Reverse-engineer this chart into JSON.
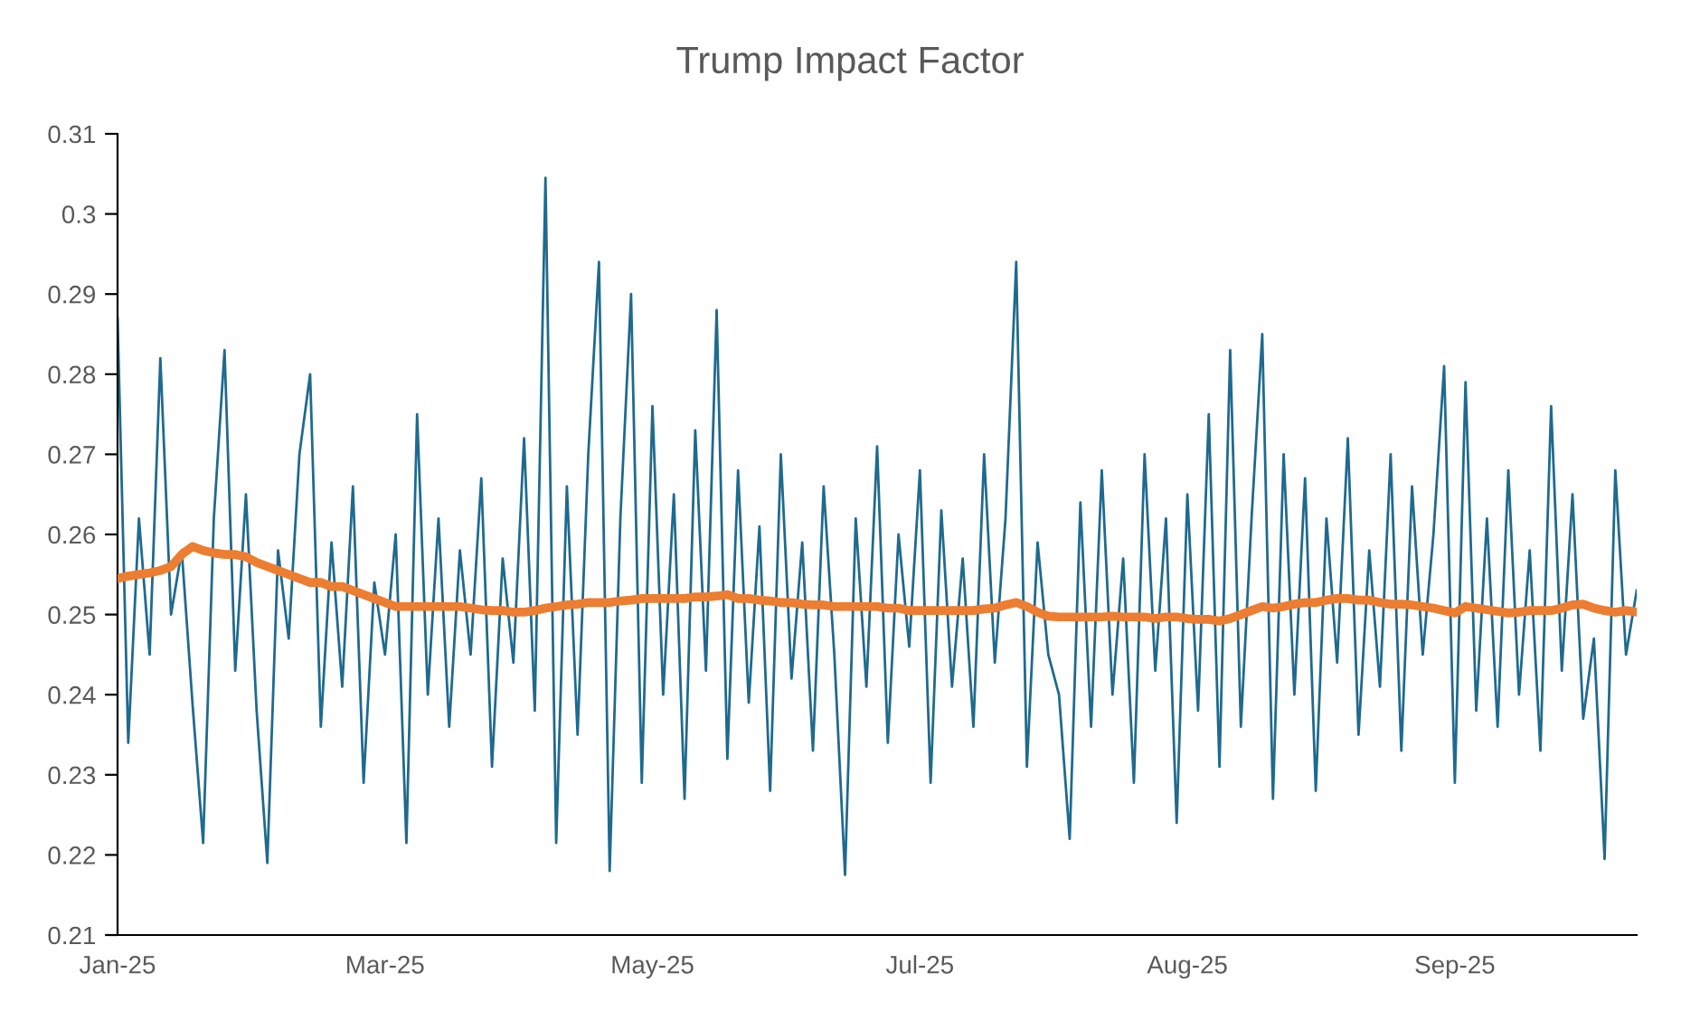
{
  "chart_data": {
    "type": "line",
    "title": "Trump Impact Factor",
    "categories": [
      "Jan-25",
      null,
      null,
      null,
      null,
      null,
      null,
      null,
      null,
      null,
      null,
      null,
      null,
      null,
      null,
      null,
      null,
      null,
      null,
      null,
      null,
      null,
      null,
      null,
      null,
      "Mar-25",
      null,
      null,
      null,
      null,
      null,
      null,
      null,
      null,
      null,
      null,
      null,
      null,
      null,
      null,
      null,
      null,
      null,
      null,
      null,
      null,
      null,
      null,
      null,
      null,
      "May-25",
      null,
      null,
      null,
      null,
      null,
      null,
      null,
      null,
      null,
      null,
      null,
      null,
      null,
      null,
      null,
      null,
      null,
      null,
      null,
      null,
      null,
      null,
      null,
      null,
      "Jul-25",
      null,
      null,
      null,
      null,
      null,
      null,
      null,
      null,
      null,
      null,
      null,
      null,
      null,
      null,
      null,
      null,
      null,
      null,
      null,
      null,
      null,
      null,
      null,
      null,
      "Aug-25",
      null,
      null,
      null,
      null,
      null,
      null,
      null,
      null,
      null,
      null,
      null,
      null,
      null,
      null,
      null,
      null,
      null,
      null,
      null,
      null,
      null,
      null,
      null,
      null,
      "Sep-25",
      null,
      null,
      null,
      null,
      null,
      null,
      null,
      null,
      null,
      null,
      null,
      null,
      null,
      null,
      null,
      null,
      null
    ],
    "ylim": [
      0.21,
      0.31
    ],
    "yticks": [
      0.21,
      0.22,
      0.23,
      0.24,
      0.25,
      0.26,
      0.27,
      0.28,
      0.29,
      0.3,
      0.31
    ],
    "grid": false,
    "marker": "none",
    "line_style": "solid",
    "series": [
      {
        "color": "#1f6a8e",
        "values": [
          0.287,
          0.234,
          0.262,
          0.245,
          0.282,
          0.25,
          0.258,
          0.239,
          0.2215,
          0.262,
          0.283,
          0.243,
          0.265,
          0.238,
          0.219,
          0.258,
          0.247,
          0.27,
          0.28,
          0.236,
          0.259,
          0.241,
          0.266,
          0.229,
          0.254,
          0.245,
          0.26,
          0.2215,
          0.275,
          0.24,
          0.262,
          0.236,
          0.258,
          0.245,
          0.267,
          0.231,
          0.257,
          0.244,
          0.272,
          0.238,
          0.3045,
          0.2215,
          0.266,
          0.235,
          0.27,
          0.294,
          0.218,
          0.262,
          0.29,
          0.229,
          0.276,
          0.24,
          0.265,
          0.227,
          0.273,
          0.243,
          0.288,
          0.232,
          0.268,
          0.239,
          0.261,
          0.228,
          0.27,
          0.242,
          0.259,
          0.233,
          0.266,
          0.245,
          0.2175,
          0.262,
          0.241,
          0.271,
          0.234,
          0.26,
          0.246,
          0.268,
          0.229,
          0.263,
          0.241,
          0.257,
          0.236,
          0.27,
          0.244,
          0.262,
          0.294,
          0.231,
          0.259,
          0.245,
          0.24,
          0.222,
          0.264,
          0.236,
          0.268,
          0.24,
          0.257,
          0.229,
          0.27,
          0.243,
          0.262,
          0.224,
          0.265,
          0.238,
          0.275,
          0.231,
          0.283,
          0.236,
          0.262,
          0.285,
          0.227,
          0.27,
          0.24,
          0.267,
          0.228,
          0.262,
          0.244,
          0.272,
          0.235,
          0.258,
          0.241,
          0.27,
          0.233,
          0.266,
          0.245,
          0.26,
          0.281,
          0.229,
          0.279,
          0.238,
          0.262,
          0.236,
          0.268,
          0.24,
          0.258,
          0.233,
          0.276,
          0.243,
          0.265,
          0.237,
          0.247,
          0.2195,
          0.268,
          0.245,
          0.253
        ]
      },
      {
        "color": "#ed7d31",
        "values": [
          0.2545,
          0.2548,
          0.255,
          0.2552,
          0.2555,
          0.256,
          0.2575,
          0.2585,
          0.258,
          0.2577,
          0.2575,
          0.2575,
          0.2572,
          0.2565,
          0.256,
          0.2555,
          0.255,
          0.2545,
          0.254,
          0.254,
          0.2535,
          0.2535,
          0.253,
          0.2525,
          0.252,
          0.2515,
          0.251,
          0.251,
          0.251,
          0.251,
          0.251,
          0.251,
          0.251,
          0.2508,
          0.2506,
          0.2505,
          0.2505,
          0.2503,
          0.2503,
          0.2505,
          0.2508,
          0.251,
          0.2512,
          0.2513,
          0.2515,
          0.2515,
          0.2515,
          0.2517,
          0.2518,
          0.252,
          0.252,
          0.252,
          0.252,
          0.252,
          0.2522,
          0.2522,
          0.2523,
          0.2525,
          0.252,
          0.252,
          0.2518,
          0.2517,
          0.2515,
          0.2515,
          0.2513,
          0.2512,
          0.2512,
          0.251,
          0.251,
          0.251,
          0.251,
          0.251,
          0.2508,
          0.2508,
          0.2505,
          0.2505,
          0.2505,
          0.2505,
          0.2505,
          0.2505,
          0.2505,
          0.2507,
          0.2508,
          0.2512,
          0.2515,
          0.251,
          0.2503,
          0.2498,
          0.2497,
          0.2497,
          0.2497,
          0.2497,
          0.2497,
          0.2498,
          0.2497,
          0.2497,
          0.2497,
          0.2495,
          0.2497,
          0.2497,
          0.2495,
          0.2494,
          0.2494,
          0.2492,
          0.2495,
          0.25,
          0.2505,
          0.251,
          0.2508,
          0.251,
          0.2513,
          0.2515,
          0.2515,
          0.2518,
          0.252,
          0.252,
          0.2518,
          0.2518,
          0.2515,
          0.2513,
          0.2513,
          0.2512,
          0.251,
          0.2508,
          0.2505,
          0.2502,
          0.251,
          0.2508,
          0.2506,
          0.2504,
          0.2502,
          0.2503,
          0.2505,
          0.2505,
          0.2505,
          0.2508,
          0.2512,
          0.2513,
          0.2508,
          0.2505,
          0.2503,
          0.2505,
          0.2503
        ]
      }
    ]
  }
}
